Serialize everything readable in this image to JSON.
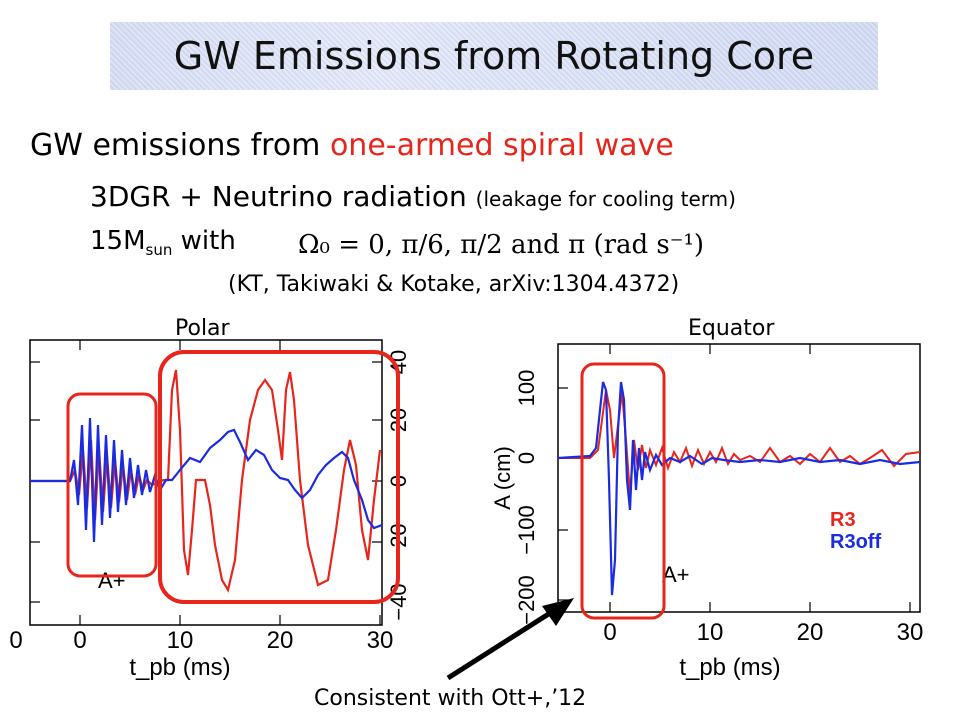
{
  "slide_title": "GW Emissions from Rotating Core",
  "bullet_main_prefix": "GW emissions from ",
  "bullet_main_highlight": "one-armed spiral wave",
  "sub1_text": "3DGR + Neutrino radiation ",
  "sub1_small": "(leakage for cooling term)",
  "sub2_prefix": "15M",
  "sub2_subscript": "sun",
  "sub2_suffix": " with",
  "sub2_equation": "Ω₀ = 0,  π/6,  π/2  and  π  (rad s⁻¹)",
  "reference": "(KT, Takiwaki & Kotake, arXiv:1304.4372)",
  "left_plot_label": "Polar",
  "right_plot_label": "Equator",
  "footnote": "Consistent with Ott+,’12",
  "colors": {
    "r3": "#e8251b",
    "r3_off": "#1a2be0",
    "highlight": "#e8251b"
  },
  "chart_data": [
    {
      "type": "line",
      "title": "Polar",
      "xlabel": "t_pb (ms)",
      "x_ticks": [
        "0",
        "0",
        "10",
        "20",
        "30"
      ],
      "y_ticks_right": [
        "40",
        "20",
        "0",
        "−20",
        "−40"
      ],
      "annotation": "A+",
      "series": []
    },
    {
      "type": "line",
      "title": "Equator",
      "xlabel": "t_pb (ms)",
      "ylabel": "A (cm)",
      "x_ticks": [
        "0",
        "10",
        "20",
        "30"
      ],
      "y_ticks": [
        "100",
        "0",
        "−100",
        "−200"
      ],
      "annotation": "A+",
      "legend": [
        "R3",
        "R3off"
      ],
      "series": []
    }
  ]
}
